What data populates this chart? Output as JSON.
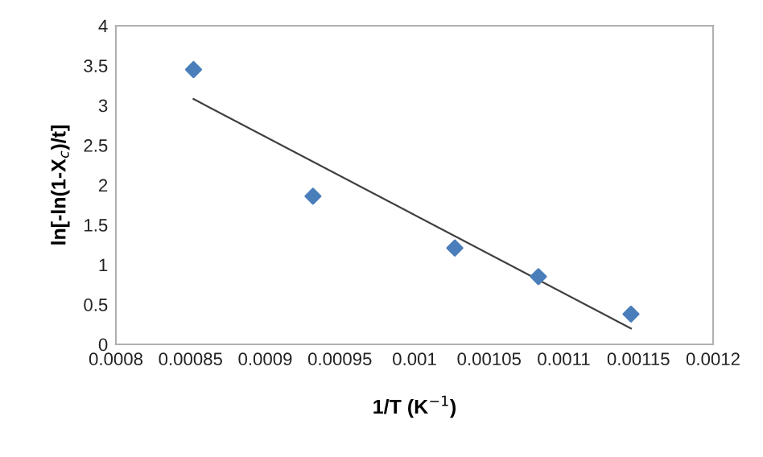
{
  "chart_data": {
    "type": "scatter",
    "xlabel": "1/T (K$^{−1}$)",
    "ylabel": "ln[-ln(1-X$_{c}$)/t]",
    "x": [
      0.000852,
      0.000932,
      0.001027,
      0.001083,
      0.001145
    ],
    "series": [
      {
        "color": "#4a7ebb",
        "marker": "diamond",
        "values": [
          3.45,
          1.86,
          1.21,
          0.85,
          0.38
        ]
      },
      {
        "type": "line",
        "color": "#404040",
        "marker": "none",
        "x": [
          0.000852,
          0.001145
        ],
        "values": [
          3.08,
          0.2
        ]
      }
    ],
    "xlim": [
      0.0008,
      0.0012
    ],
    "xticks": [
      0.0008,
      0.00085,
      0.0009,
      0.00095,
      0.001,
      0.00105,
      0.0011,
      0.00115,
      0.0012
    ],
    "ylim": [
      0,
      4
    ],
    "yticks": [
      0,
      0.5,
      1,
      1.5,
      2,
      2.5,
      3,
      3.5,
      4
    ],
    "grid": false
  }
}
